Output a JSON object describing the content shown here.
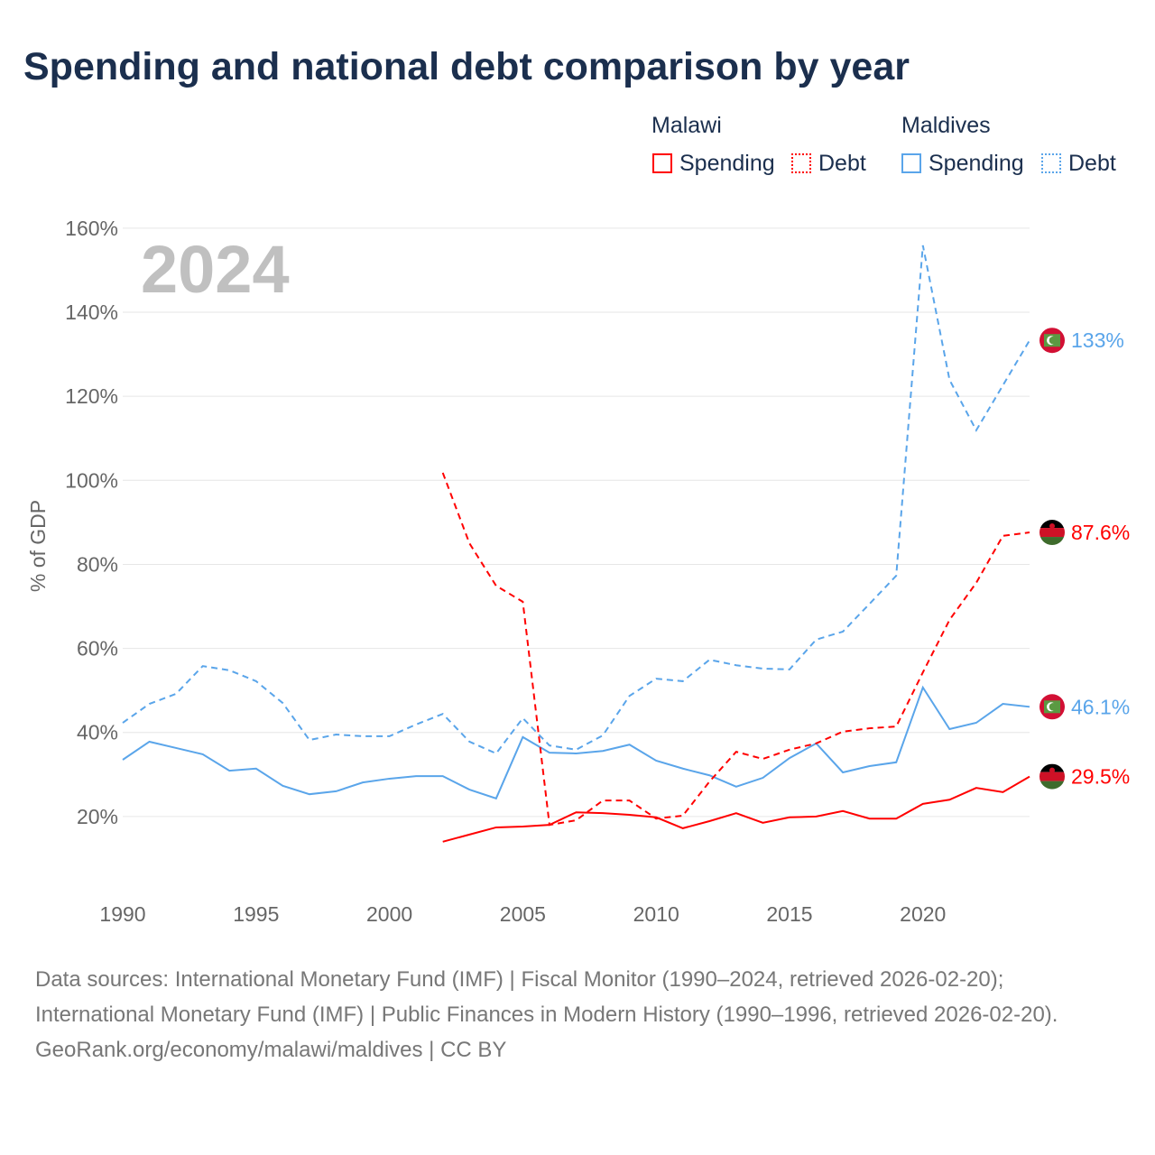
{
  "title": "Spending and national debt comparison by year",
  "legend": {
    "malawi": "Malawi",
    "maldives": "Maldives",
    "spending": "Spending",
    "debt": "Debt"
  },
  "colors": {
    "malawi": "#ff0000",
    "maldives": "#5aa5ea"
  },
  "footer": {
    "line1": "Data sources: International Monetary Fund (IMF) | Fiscal Monitor (1990–2024, retrieved 2026-02-20);",
    "line2": "International Monetary Fund (IMF) | Public Finances in Modern History (1990–1996, retrieved 2026-02-20).",
    "line3": "GeoRank.org/economy/malawi/maldives | CC BY"
  },
  "chart_data": {
    "type": "line",
    "year_label": "2024",
    "ylabel": "% of GDP",
    "ylim": [
      0,
      160
    ],
    "xlim": [
      1990,
      2024
    ],
    "yticks": [
      "20%",
      "40%",
      "60%",
      "80%",
      "100%",
      "120%",
      "140%",
      "160%"
    ],
    "ytick_values": [
      20,
      40,
      60,
      80,
      100,
      120,
      140,
      160
    ],
    "xticks": [
      "1990",
      "1995",
      "2000",
      "2005",
      "2010",
      "2015",
      "2020"
    ],
    "xtick_values": [
      1990,
      1995,
      2000,
      2005,
      2010,
      2015,
      2020
    ],
    "series": [
      {
        "name": "Maldives Spending",
        "country": "maldives",
        "dashed": false,
        "start": 1990,
        "end_label": "46.1%",
        "values": [
          33.5,
          37.8,
          36.3,
          34.8,
          30.9,
          31.4,
          27.3,
          25.3,
          26.0,
          28.1,
          29.0,
          29.6,
          29.6,
          26.4,
          24.3,
          38.9,
          35.2,
          35.0,
          35.6,
          37.1,
          33.3,
          31.4,
          29.8,
          27.1,
          29.2,
          33.9,
          37.4,
          30.5,
          32.0,
          32.9,
          50.7,
          40.8,
          42.3,
          46.8,
          46.1
        ]
      },
      {
        "name": "Maldives Debt",
        "country": "maldives",
        "dashed": true,
        "start": 1990,
        "end_label": "133%",
        "values": [
          42.3,
          46.8,
          49.2,
          55.8,
          54.8,
          52.2,
          47.0,
          38.2,
          39.5,
          39.1,
          39.1,
          41.9,
          44.4,
          37.8,
          35.0,
          43.4,
          36.9,
          35.9,
          39.3,
          48.7,
          52.8,
          52.2,
          57.3,
          56.0,
          55.2,
          55.0,
          62.1,
          64.0,
          70.6,
          77.3,
          155.9,
          123.9,
          111.9,
          122.6,
          133.3
        ]
      },
      {
        "name": "Malawi Spending",
        "country": "malawi",
        "dashed": false,
        "start": 2002,
        "end_label": "29.5%",
        "values": [
          14.0,
          15.7,
          17.4,
          17.6,
          18.0,
          21.0,
          20.8,
          20.4,
          19.8,
          17.2,
          18.9,
          20.8,
          18.5,
          19.8,
          20.0,
          21.3,
          19.5,
          19.5,
          23.0,
          24.0,
          26.8,
          25.8,
          29.5
        ]
      },
      {
        "name": "Malawi Debt",
        "country": "malawi",
        "dashed": true,
        "start": 2002,
        "end_label": "87.6%",
        "values": [
          101.8,
          85.0,
          74.9,
          71.1,
          18.0,
          19.1,
          23.8,
          23.8,
          19.5,
          20.2,
          28.3,
          35.4,
          33.7,
          35.9,
          37.4,
          40.2,
          41.0,
          41.4,
          54.3,
          66.8,
          75.6,
          86.8,
          87.6
        ]
      }
    ]
  }
}
